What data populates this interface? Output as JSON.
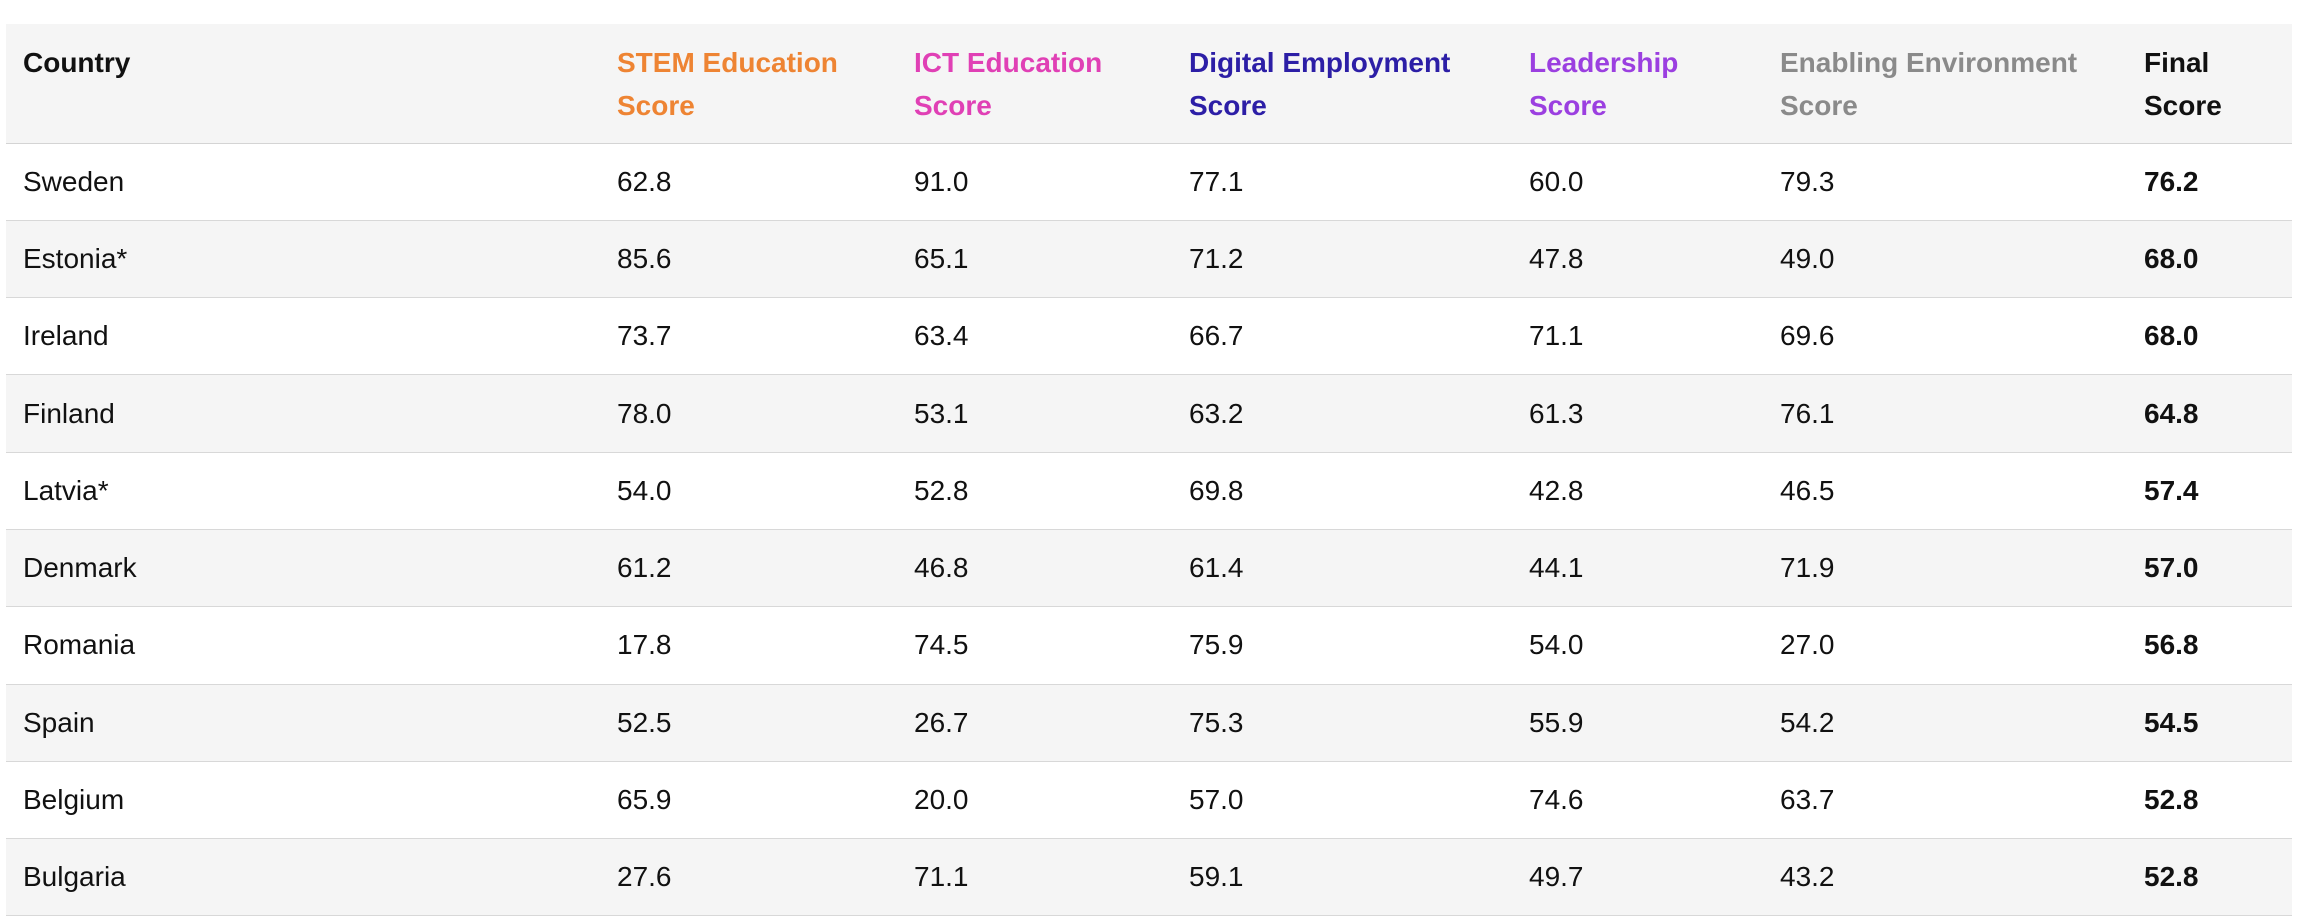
{
  "chart_data": {
    "type": "table",
    "columns": [
      {
        "label": "Country",
        "color": "#111111"
      },
      {
        "label": "STEM Education Score",
        "color": "#ee8433"
      },
      {
        "label": "ICT Education Score",
        "color": "#e040b5"
      },
      {
        "label": "Digital Employment Score",
        "color": "#2c1ea6"
      },
      {
        "label": "Leadership Score",
        "color": "#9b3fe0"
      },
      {
        "label": "Enabling Environment Score",
        "color": "#8a8a8a"
      },
      {
        "label": "Final Score",
        "color": "#111111"
      }
    ],
    "rows": [
      [
        "Sweden",
        "62.8",
        "91.0",
        "77.1",
        "60.0",
        "79.3",
        "76.2"
      ],
      [
        "Estonia*",
        "85.6",
        "65.1",
        "71.2",
        "47.8",
        "49.0",
        "68.0"
      ],
      [
        "Ireland",
        "73.7",
        "63.4",
        "66.7",
        "71.1",
        "69.6",
        "68.0"
      ],
      [
        "Finland",
        "78.0",
        "53.1",
        "63.2",
        "61.3",
        "76.1",
        "64.8"
      ],
      [
        "Latvia*",
        "54.0",
        "52.8",
        "69.8",
        "42.8",
        "46.5",
        "57.4"
      ],
      [
        "Denmark",
        "61.2",
        "46.8",
        "61.4",
        "44.1",
        "71.9",
        "57.0"
      ],
      [
        "Romania",
        "17.8",
        "74.5",
        "75.9",
        "54.0",
        "27.0",
        "56.8"
      ],
      [
        "Spain",
        "52.5",
        "26.7",
        "75.3",
        "55.9",
        "54.2",
        "54.5"
      ],
      [
        "Belgium",
        "65.9",
        "20.0",
        "57.0",
        "74.6",
        "63.7",
        "52.8"
      ],
      [
        "Bulgaria",
        "27.6",
        "71.1",
        "59.1",
        "49.7",
        "43.2",
        "52.8"
      ]
    ]
  }
}
